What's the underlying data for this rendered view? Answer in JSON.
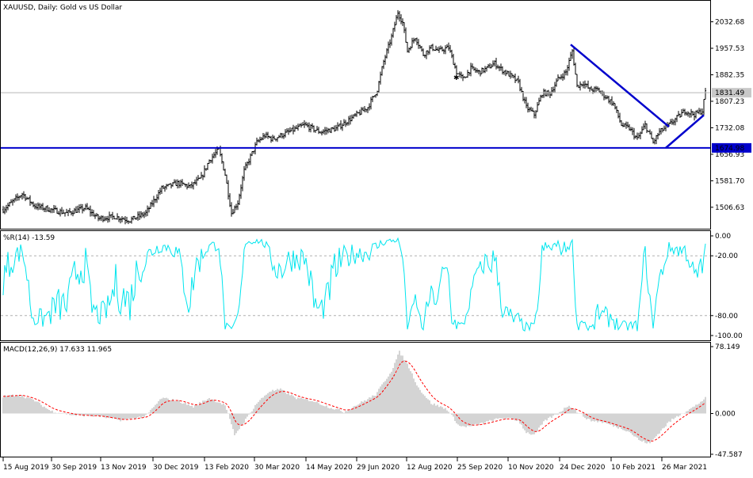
{
  "chart_data": [
    {
      "id": "price",
      "type": "bar",
      "title": "XAUUSD, Daily:  Gold vs US Dollar",
      "x_labels": [
        "15 Aug 2019",
        "30 Sep 2019",
        "13 Nov 2019",
        "30 Dec 2019",
        "13 Feb 2020",
        "30 Mar 2020",
        "14 May 2020",
        "29 Jun 2020",
        "12 Aug 2020",
        "25 Sep 2020",
        "10 Nov 2020",
        "24 Dec 2020",
        "10 Feb 2021",
        "26 Mar 2021"
      ],
      "y_ticks": [
        1506.63,
        1581.7,
        1656.93,
        1732.08,
        1807.23,
        1882.35,
        1957.53,
        2032.68
      ],
      "y_tick_labels": [
        "1506.63",
        "1581.70",
        "1656.93",
        "1732.08",
        "1807.23",
        "1882.35",
        "1957.53",
        "2032.68"
      ],
      "ylim": [
        1448,
        2090
      ],
      "current_price": 1831.49,
      "current_price_label": "1831.49",
      "horizontal_line": 1674.98,
      "horizontal_line_label": "1674.98",
      "trendlines": [
        {
          "from": [
            1968,
            "Jan 2021"
          ],
          "to": [
            1735,
            "early Mar 2021"
          ]
        },
        {
          "from": [
            1675,
            "early Mar 2021"
          ],
          "to": [
            1768,
            "Apr 2021"
          ]
        }
      ],
      "anchors": [
        {
          "i": 0,
          "v": 1500
        },
        {
          "i": 8,
          "v": 1530
        },
        {
          "i": 12,
          "v": 1545
        },
        {
          "i": 20,
          "v": 1510
        },
        {
          "i": 30,
          "v": 1500
        },
        {
          "i": 40,
          "v": 1490
        },
        {
          "i": 52,
          "v": 1505
        },
        {
          "i": 60,
          "v": 1475
        },
        {
          "i": 70,
          "v": 1480
        },
        {
          "i": 80,
          "v": 1470
        },
        {
          "i": 90,
          "v": 1490
        },
        {
          "i": 100,
          "v": 1560
        },
        {
          "i": 110,
          "v": 1575
        },
        {
          "i": 118,
          "v": 1565
        },
        {
          "i": 125,
          "v": 1590
        },
        {
          "i": 130,
          "v": 1640
        },
        {
          "i": 136,
          "v": 1670
        },
        {
          "i": 140,
          "v": 1600
        },
        {
          "i": 144,
          "v": 1490
        },
        {
          "i": 148,
          "v": 1520
        },
        {
          "i": 152,
          "v": 1610
        },
        {
          "i": 156,
          "v": 1650
        },
        {
          "i": 160,
          "v": 1690
        },
        {
          "i": 165,
          "v": 1710
        },
        {
          "i": 170,
          "v": 1700
        },
        {
          "i": 180,
          "v": 1720
        },
        {
          "i": 190,
          "v": 1740
        },
        {
          "i": 200,
          "v": 1720
        },
        {
          "i": 210,
          "v": 1730
        },
        {
          "i": 220,
          "v": 1760
        },
        {
          "i": 230,
          "v": 1790
        },
        {
          "i": 236,
          "v": 1840
        },
        {
          "i": 240,
          "v": 1920
        },
        {
          "i": 245,
          "v": 1990
        },
        {
          "i": 249,
          "v": 2060
        },
        {
          "i": 252,
          "v": 2030
        },
        {
          "i": 255,
          "v": 1950
        },
        {
          "i": 260,
          "v": 1990
        },
        {
          "i": 265,
          "v": 1940
        },
        {
          "i": 270,
          "v": 1960
        },
        {
          "i": 275,
          "v": 1950
        },
        {
          "i": 281,
          "v": 1960
        },
        {
          "i": 286,
          "v": 1890
        },
        {
          "i": 290,
          "v": 1870
        },
        {
          "i": 295,
          "v": 1900
        },
        {
          "i": 300,
          "v": 1890
        },
        {
          "i": 305,
          "v": 1900
        },
        {
          "i": 310,
          "v": 1915
        },
        {
          "i": 315,
          "v": 1895
        },
        {
          "i": 320,
          "v": 1880
        },
        {
          "i": 325,
          "v": 1860
        },
        {
          "i": 330,
          "v": 1790
        },
        {
          "i": 335,
          "v": 1770
        },
        {
          "i": 340,
          "v": 1830
        },
        {
          "i": 345,
          "v": 1830
        },
        {
          "i": 350,
          "v": 1870
        },
        {
          "i": 355,
          "v": 1890
        },
        {
          "i": 359,
          "v": 1950
        },
        {
          "i": 362,
          "v": 1850
        },
        {
          "i": 366,
          "v": 1860
        },
        {
          "i": 370,
          "v": 1840
        },
        {
          "i": 375,
          "v": 1840
        },
        {
          "i": 380,
          "v": 1820
        },
        {
          "i": 385,
          "v": 1800
        },
        {
          "i": 390,
          "v": 1740
        },
        {
          "i": 395,
          "v": 1730
        },
        {
          "i": 400,
          "v": 1700
        },
        {
          "i": 405,
          "v": 1740
        },
        {
          "i": 410,
          "v": 1690
        },
        {
          "i": 414,
          "v": 1720
        },
        {
          "i": 420,
          "v": 1740
        },
        {
          "i": 425,
          "v": 1760
        },
        {
          "i": 430,
          "v": 1780
        },
        {
          "i": 436,
          "v": 1770
        },
        {
          "i": 441,
          "v": 1780
        },
        {
          "i": 443,
          "v": 1835
        }
      ]
    },
    {
      "id": "williams",
      "type": "line",
      "title": "%R(14) -13.59",
      "y_ticks": [
        0,
        -20,
        -80,
        -100
      ],
      "y_tick_labels": [
        "0.00",
        "-20.00",
        "-80.00",
        "-100.00"
      ],
      "ylim": [
        -104,
        4
      ],
      "levels": [
        -20,
        -80
      ],
      "color": "#00e5ee"
    },
    {
      "id": "macd",
      "type": "bar",
      "title": "MACD(12,26,9) 17.633 11.965",
      "y_ticks": [
        78.149,
        0,
        -47.587
      ],
      "y_tick_labels": [
        "78.149",
        "0.000",
        "-47.587"
      ],
      "ylim": [
        -47.587,
        78.149
      ],
      "signal_color": "#ff0000",
      "histogram_color": "#a9a9a9",
      "anchors": [
        {
          "i": 0,
          "v": 20
        },
        {
          "i": 10,
          "v": 22
        },
        {
          "i": 20,
          "v": 15
        },
        {
          "i": 30,
          "v": 3
        },
        {
          "i": 45,
          "v": -2
        },
        {
          "i": 60,
          "v": -3
        },
        {
          "i": 75,
          "v": -8
        },
        {
          "i": 90,
          "v": -3
        },
        {
          "i": 100,
          "v": 18
        },
        {
          "i": 110,
          "v": 15
        },
        {
          "i": 120,
          "v": 8
        },
        {
          "i": 130,
          "v": 18
        },
        {
          "i": 140,
          "v": 10
        },
        {
          "i": 146,
          "v": -25
        },
        {
          "i": 152,
          "v": -10
        },
        {
          "i": 160,
          "v": 12
        },
        {
          "i": 168,
          "v": 26
        },
        {
          "i": 175,
          "v": 28
        },
        {
          "i": 185,
          "v": 18
        },
        {
          "i": 195,
          "v": 15
        },
        {
          "i": 205,
          "v": 8
        },
        {
          "i": 215,
          "v": 2
        },
        {
          "i": 225,
          "v": 12
        },
        {
          "i": 235,
          "v": 22
        },
        {
          "i": 245,
          "v": 50
        },
        {
          "i": 250,
          "v": 72
        },
        {
          "i": 255,
          "v": 58
        },
        {
          "i": 262,
          "v": 30
        },
        {
          "i": 270,
          "v": 12
        },
        {
          "i": 280,
          "v": 5
        },
        {
          "i": 288,
          "v": -15
        },
        {
          "i": 295,
          "v": -15
        },
        {
          "i": 305,
          "v": -10
        },
        {
          "i": 315,
          "v": -5
        },
        {
          "i": 325,
          "v": -8
        },
        {
          "i": 330,
          "v": -22
        },
        {
          "i": 335,
          "v": -25
        },
        {
          "i": 342,
          "v": -8
        },
        {
          "i": 350,
          "v": 0
        },
        {
          "i": 357,
          "v": 10
        },
        {
          "i": 362,
          "v": 2
        },
        {
          "i": 370,
          "v": -8
        },
        {
          "i": 378,
          "v": -10
        },
        {
          "i": 386,
          "v": -15
        },
        {
          "i": 394,
          "v": -20
        },
        {
          "i": 402,
          "v": -32
        },
        {
          "i": 408,
          "v": -35
        },
        {
          "i": 414,
          "v": -22
        },
        {
          "i": 420,
          "v": -10
        },
        {
          "i": 428,
          "v": 0
        },
        {
          "i": 436,
          "v": 8
        },
        {
          "i": 443,
          "v": 18
        }
      ]
    }
  ]
}
